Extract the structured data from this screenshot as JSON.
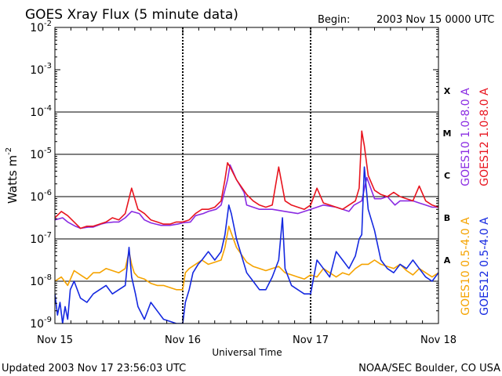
{
  "chart_data": {
    "type": "line",
    "title": "GOES Xray Flux (5 minute data)",
    "begin_label": "Begin:",
    "begin_date": "2003 Nov 15 0000 UTC",
    "xlabel": "Universal Time",
    "ylabel": "Watts m",
    "ylabel_sup": "-2",
    "yscale": "log",
    "ylim_exp": [
      -9,
      -2
    ],
    "y_ticks": [
      {
        "base": "10",
        "exp": "-9",
        "log": -9
      },
      {
        "base": "10",
        "exp": "-8",
        "log": -8
      },
      {
        "base": "10",
        "exp": "-7",
        "log": -7
      },
      {
        "base": "10",
        "exp": "-6",
        "log": -6
      },
      {
        "base": "10",
        "exp": "-5",
        "log": -5
      },
      {
        "base": "10",
        "exp": "-4",
        "log": -4
      },
      {
        "base": "10",
        "exp": "-3",
        "log": -3
      },
      {
        "base": "10",
        "exp": "-2",
        "log": -2
      }
    ],
    "gridlines_log": [
      -8,
      -7,
      -6,
      -5,
      -4
    ],
    "x_range_days": [
      0,
      3
    ],
    "x_ticks": [
      {
        "label": "Nov 15",
        "day": 0
      },
      {
        "label": "Nov 16",
        "day": 1
      },
      {
        "label": "Nov 17",
        "day": 2
      },
      {
        "label": "Nov 18",
        "day": 3
      }
    ],
    "flare_classes": [
      {
        "label": "X",
        "log": -3.5
      },
      {
        "label": "M",
        "log": -4.5
      },
      {
        "label": "C",
        "log": -5.5
      },
      {
        "label": "B",
        "log": -6.5
      },
      {
        "label": "A",
        "log": -7.5
      }
    ],
    "legend": [
      {
        "label": "GOES10 1.0-8.0 A",
        "color": "#8a2be2",
        "group": "long"
      },
      {
        "label": "GOES12 1.0-8.0 A",
        "color": "#e8141e",
        "group": "long"
      },
      {
        "label": "GOES10 0.5-4.0 A",
        "color": "#f5a300",
        "group": "short"
      },
      {
        "label": "GOES12 0.5-4.0 A",
        "color": "#1428e0",
        "group": "short"
      }
    ],
    "series": [
      {
        "name": "GOES10 1.0-8.0 A",
        "color": "#8a2be2",
        "x": [
          0,
          0.06,
          0.1,
          0.16,
          0.2,
          0.26,
          0.3,
          0.36,
          0.4,
          0.46,
          0.5,
          0.55,
          0.6,
          0.66,
          0.7,
          0.75,
          0.79,
          0.83,
          0.9,
          0.96,
          1.0,
          1.06,
          1.1,
          1.16,
          1.2,
          1.26,
          1.3,
          1.35,
          1.37,
          1.42,
          1.48,
          1.5,
          1.55,
          1.6,
          1.65,
          1.7,
          1.8,
          1.9,
          2.0,
          2.1,
          2.2,
          2.3,
          2.34,
          2.4,
          2.44,
          2.5,
          2.55,
          2.6,
          2.66,
          2.7,
          2.8,
          2.85,
          2.9,
          2.95,
          3.0
        ],
        "y": [
          -6.55,
          -6.5,
          -6.6,
          -6.7,
          -6.75,
          -6.72,
          -6.72,
          -6.65,
          -6.62,
          -6.6,
          -6.6,
          -6.5,
          -6.35,
          -6.4,
          -6.55,
          -6.62,
          -6.65,
          -6.68,
          -6.68,
          -6.65,
          -6.62,
          -6.6,
          -6.45,
          -6.4,
          -6.35,
          -6.3,
          -6.2,
          -5.6,
          -5.25,
          -5.6,
          -5.9,
          -6.2,
          -6.25,
          -6.3,
          -6.3,
          -6.3,
          -6.35,
          -6.4,
          -6.3,
          -6.2,
          -6.25,
          -6.35,
          -6.2,
          -6.1,
          -5.55,
          -6.05,
          -6.05,
          -6.0,
          -6.2,
          -6.1,
          -6.1,
          -6.15,
          -6.2,
          -6.25,
          -6.25
        ]
      },
      {
        "name": "GOES12 1.0-8.0 A",
        "color": "#e8141e",
        "x": [
          0,
          0.05,
          0.1,
          0.15,
          0.2,
          0.25,
          0.3,
          0.35,
          0.4,
          0.45,
          0.5,
          0.55,
          0.6,
          0.65,
          0.7,
          0.75,
          0.8,
          0.85,
          0.9,
          0.95,
          1.0,
          1.05,
          1.1,
          1.15,
          1.2,
          1.25,
          1.3,
          1.33,
          1.35,
          1.37,
          1.42,
          1.5,
          1.55,
          1.6,
          1.65,
          1.7,
          1.75,
          1.8,
          1.85,
          1.9,
          1.95,
          2.0,
          2.05,
          2.1,
          2.15,
          2.2,
          2.25,
          2.3,
          2.35,
          2.38,
          2.4,
          2.42,
          2.45,
          2.5,
          2.55,
          2.6,
          2.65,
          2.7,
          2.75,
          2.8,
          2.85,
          2.9,
          2.95,
          3.0
        ],
        "y": [
          -6.5,
          -6.35,
          -6.45,
          -6.6,
          -6.75,
          -6.7,
          -6.7,
          -6.65,
          -6.6,
          -6.5,
          -6.55,
          -6.4,
          -5.8,
          -6.3,
          -6.4,
          -6.55,
          -6.6,
          -6.65,
          -6.65,
          -6.6,
          -6.6,
          -6.55,
          -6.4,
          -6.3,
          -6.3,
          -6.25,
          -6.1,
          -5.6,
          -5.2,
          -5.3,
          -5.6,
          -5.95,
          -6.1,
          -6.2,
          -6.25,
          -6.2,
          -5.3,
          -6.1,
          -6.2,
          -6.25,
          -6.3,
          -6.2,
          -5.8,
          -6.15,
          -6.2,
          -6.25,
          -6.3,
          -6.2,
          -6.1,
          -5.8,
          -4.45,
          -4.8,
          -5.5,
          -5.85,
          -5.95,
          -6.0,
          -5.9,
          -6.0,
          -6.05,
          -6.1,
          -5.75,
          -6.1,
          -6.2,
          -6.25
        ]
      },
      {
        "name": "GOES10 0.5-4.0 A",
        "color": "#f5a300",
        "x": [
          0,
          0.05,
          0.1,
          0.15,
          0.2,
          0.25,
          0.3,
          0.35,
          0.4,
          0.45,
          0.5,
          0.55,
          0.58,
          0.6,
          0.62,
          0.65,
          0.7,
          0.75,
          0.8,
          0.85,
          0.9,
          0.95,
          1.0,
          1.02,
          1.05,
          1.1,
          1.15,
          1.2,
          1.25,
          1.3,
          1.33,
          1.36,
          1.42,
          1.5,
          1.55,
          1.6,
          1.65,
          1.7,
          1.75,
          1.8,
          1.85,
          1.9,
          1.95,
          2.0,
          2.05,
          2.1,
          2.15,
          2.2,
          2.25,
          2.3,
          2.35,
          2.4,
          2.45,
          2.5,
          2.55,
          2.6,
          2.65,
          2.7,
          2.75,
          2.8,
          2.85,
          2.9,
          2.95,
          3.0
        ],
        "y": [
          -8.0,
          -7.9,
          -8.1,
          -7.75,
          -7.85,
          -7.95,
          -7.8,
          -7.8,
          -7.7,
          -7.75,
          -7.8,
          -7.7,
          -7.3,
          -7.6,
          -7.8,
          -7.9,
          -7.95,
          -8.05,
          -8.1,
          -8.1,
          -8.15,
          -8.2,
          -8.2,
          -7.8,
          -7.7,
          -7.6,
          -7.5,
          -7.6,
          -7.55,
          -7.5,
          -7.2,
          -6.7,
          -7.2,
          -7.55,
          -7.65,
          -7.7,
          -7.75,
          -7.7,
          -7.65,
          -7.8,
          -7.85,
          -7.9,
          -7.95,
          -7.85,
          -7.9,
          -7.7,
          -7.8,
          -7.9,
          -7.8,
          -7.85,
          -7.7,
          -7.6,
          -7.6,
          -7.5,
          -7.6,
          -7.65,
          -7.7,
          -7.6,
          -7.75,
          -7.85,
          -7.7,
          -7.8,
          -7.9,
          -7.8
        ]
      },
      {
        "name": "GOES12 0.5-4.0 A",
        "color": "#1428e0",
        "x": [
          0,
          0.02,
          0.04,
          0.06,
          0.08,
          0.1,
          0.12,
          0.15,
          0.2,
          0.25,
          0.3,
          0.35,
          0.4,
          0.45,
          0.5,
          0.55,
          0.58,
          0.6,
          0.63,
          0.65,
          0.7,
          0.75,
          0.8,
          0.85,
          0.9,
          0.95,
          1.0,
          1.02,
          1.05,
          1.08,
          1.12,
          1.15,
          1.2,
          1.25,
          1.3,
          1.33,
          1.36,
          1.38,
          1.42,
          1.5,
          1.55,
          1.6,
          1.65,
          1.7,
          1.75,
          1.78,
          1.8,
          1.85,
          1.9,
          1.95,
          2.0,
          2.05,
          2.1,
          2.15,
          2.2,
          2.25,
          2.3,
          2.35,
          2.38,
          2.4,
          2.42,
          2.45,
          2.5,
          2.55,
          2.6,
          2.65,
          2.7,
          2.75,
          2.8,
          2.85,
          2.9,
          2.95,
          3.0
        ],
        "y": [
          -8.3,
          -8.8,
          -8.5,
          -9.0,
          -8.6,
          -8.9,
          -8.2,
          -8.0,
          -8.4,
          -8.5,
          -8.3,
          -8.2,
          -8.1,
          -8.3,
          -8.2,
          -8.1,
          -7.2,
          -7.9,
          -8.3,
          -8.6,
          -8.9,
          -8.5,
          -8.7,
          -8.9,
          -8.95,
          -9.0,
          -9.0,
          -8.5,
          -8.2,
          -7.8,
          -7.6,
          -7.5,
          -7.3,
          -7.5,
          -7.3,
          -6.9,
          -6.2,
          -6.4,
          -7.0,
          -7.8,
          -8.0,
          -8.2,
          -8.2,
          -7.9,
          -7.5,
          -6.5,
          -7.7,
          -8.1,
          -8.2,
          -8.3,
          -8.3,
          -7.5,
          -7.7,
          -7.9,
          -7.3,
          -7.5,
          -7.7,
          -7.4,
          -7.0,
          -6.9,
          -5.3,
          -6.3,
          -6.8,
          -7.5,
          -7.7,
          -7.8,
          -7.6,
          -7.7,
          -7.5,
          -7.7,
          -7.9,
          -8.0,
          -7.8
        ]
      }
    ]
  },
  "footer": {
    "updated": "Updated 2003 Nov 17 23:56:03 UTC",
    "source": "NOAA/SEC Boulder, CO USA"
  }
}
